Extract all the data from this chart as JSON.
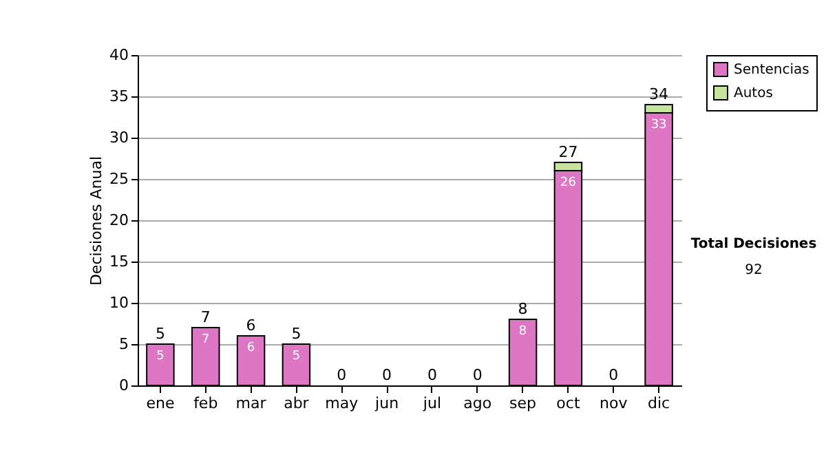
{
  "chart_data": {
    "type": "bar",
    "stacked": true,
    "ylabel": "Decisiones Anual",
    "categories": [
      "ene",
      "feb",
      "mar",
      "abr",
      "may",
      "jun",
      "jul",
      "ago",
      "sep",
      "oct",
      "nov",
      "dic"
    ],
    "series": [
      {
        "name": "Sentencias",
        "color": "#dd77c4",
        "values": [
          5,
          7,
          6,
          5,
          0,
          0,
          0,
          0,
          8,
          26,
          0,
          33
        ],
        "value_labels": [
          "5",
          "7",
          "6",
          "5",
          null,
          null,
          null,
          null,
          "8",
          "26",
          null,
          "33"
        ]
      },
      {
        "name": "Autos",
        "color": "#c8e49c",
        "values": [
          0,
          0,
          0,
          0,
          0,
          0,
          0,
          0,
          0,
          1,
          0,
          1
        ]
      }
    ],
    "totals": [
      "5",
      "7",
      "6",
      "5",
      "0",
      "0",
      "0",
      "0",
      "8",
      "27",
      "0",
      "34"
    ],
    "ylim": [
      0,
      40
    ],
    "yticks": [
      0,
      5,
      10,
      15,
      20,
      25,
      30,
      35,
      40
    ],
    "grid": "y",
    "legend": "right",
    "annotations": [
      "Total Decisiones",
      "92"
    ]
  }
}
